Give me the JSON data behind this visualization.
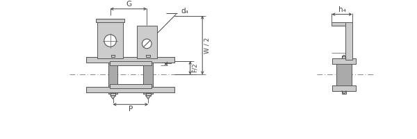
{
  "bg_color": "#ffffff",
  "line_color": "#555555",
  "fill_color": "#cccccc",
  "fill_color2": "#aaaaaa",
  "dim_color": "#444444",
  "center_line_color": "#888888",
  "figsize": [
    6.0,
    2.0
  ],
  "dpi": 100,
  "labels": {
    "G": "G",
    "d4": "d₄",
    "T": "T",
    "F2": "F/2",
    "W2": "W / 2",
    "P": "P",
    "h4": "h₄"
  }
}
